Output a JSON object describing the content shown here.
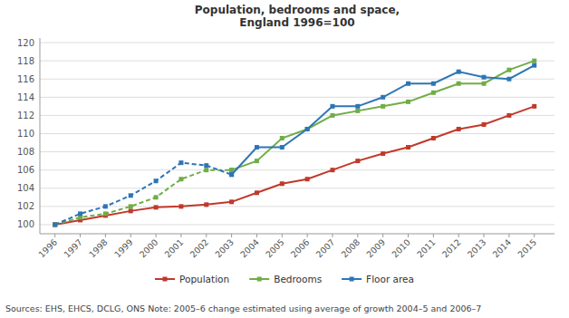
{
  "chart_data": {
    "type": "line",
    "title": "Population, bedrooms and space,\nEngland 1996=100",
    "x": [
      1996,
      1997,
      1998,
      1999,
      2000,
      2001,
      2002,
      2003,
      2004,
      2005,
      2006,
      2007,
      2008,
      2009,
      2010,
      2011,
      2012,
      2013,
      2014,
      2015
    ],
    "series": [
      {
        "name": "Population",
        "color": "#c0392b",
        "marker": "square",
        "line_style": "solid",
        "values": [
          100,
          100.5,
          101.0,
          101.5,
          101.9,
          102.0,
          102.2,
          102.5,
          103.5,
          104.5,
          105.0,
          106.0,
          107.0,
          107.8,
          108.5,
          109.5,
          110.5,
          111.0,
          112.0,
          113.0
        ]
      },
      {
        "name": "Bedrooms",
        "color": "#70ad47",
        "marker": "square",
        "line_style": "dashed",
        "values": [
          100,
          100.8,
          101.2,
          102.0,
          103.0,
          105.0,
          106.0,
          106.0,
          null,
          null,
          null,
          null,
          null,
          null,
          null,
          null,
          null,
          null,
          null,
          null
        ]
      },
      {
        "name": "Bedrooms",
        "color": "#70ad47",
        "marker": "square",
        "line_style": "solid",
        "values": [
          null,
          null,
          null,
          null,
          null,
          null,
          null,
          106.0,
          107.0,
          109.5,
          110.5,
          112.0,
          112.5,
          113.0,
          113.5,
          114.5,
          115.5,
          115.5,
          117.0,
          118.0
        ]
      },
      {
        "name": "Floor area",
        "color": "#2e75b6",
        "marker": "square",
        "line_style": "dashed",
        "values": [
          100,
          101.2,
          102.0,
          103.2,
          104.8,
          106.8,
          106.5,
          105.5,
          null,
          null,
          null,
          null,
          null,
          null,
          null,
          null,
          null,
          null,
          null,
          null
        ]
      },
      {
        "name": "Floor area",
        "color": "#2e75b6",
        "marker": "square",
        "line_style": "solid",
        "values": [
          null,
          null,
          null,
          null,
          null,
          null,
          null,
          105.5,
          108.5,
          108.5,
          110.5,
          113.0,
          113.0,
          114.0,
          115.5,
          115.5,
          116.8,
          116.2,
          116.0,
          117.5
        ]
      }
    ],
    "xlim": [
      1995.4,
      2015.8
    ],
    "xticks": [
      1996,
      1997,
      1998,
      1999,
      2000,
      2001,
      2002,
      2003,
      2004,
      2005,
      2006,
      2007,
      2008,
      2009,
      2010,
      2011,
      2012,
      2013,
      2014,
      2015
    ],
    "ylim": [
      99.0,
      120.5
    ],
    "yticks": [
      100,
      102,
      104,
      106,
      108,
      110,
      112,
      114,
      116,
      118,
      120
    ],
    "grid": true,
    "legend": "bottom",
    "annotations": [
      "Sources: EHS, EHCS, DCLG, ONS Note: 2005–6 change estimated using average of growth 2004–5 and 2006–7"
    ]
  }
}
